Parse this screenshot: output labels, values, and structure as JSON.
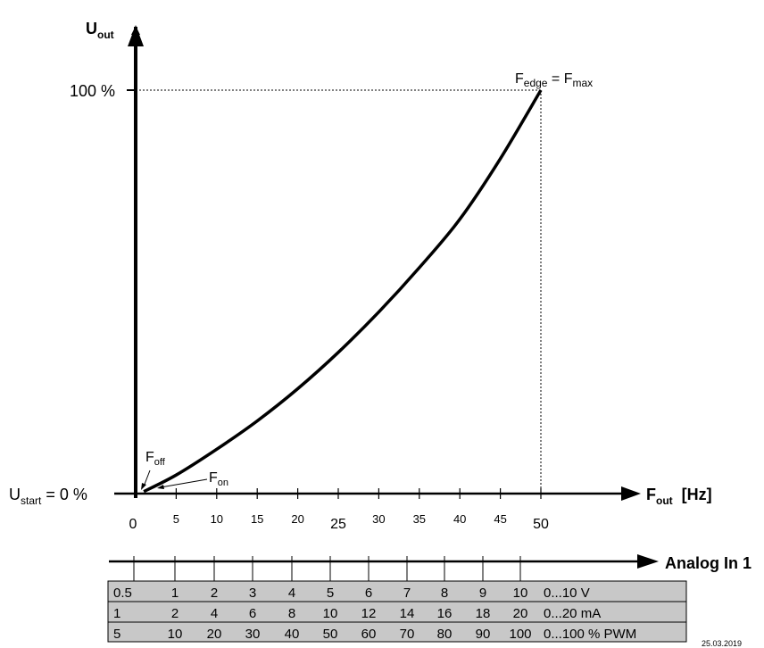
{
  "chart_data": {
    "type": "line",
    "y_axis": {
      "symbol": "U",
      "sub": "out"
    },
    "x_axis": {
      "symbol": "F",
      "sub": "out",
      "unit": "[Hz]"
    },
    "y_max_label": "100 %",
    "y_start_label": {
      "main": "U",
      "sub": "start",
      "rest": " = 0 %"
    },
    "x_ticks": [
      "0",
      "5",
      "10",
      "15",
      "20",
      "25",
      "30",
      "35",
      "40",
      "45",
      "50"
    ],
    "x_values": [
      0,
      5,
      10,
      15,
      20,
      25,
      30,
      35,
      40,
      45,
      50
    ],
    "xlim": [
      0,
      50
    ],
    "ylim": [
      0,
      100
    ],
    "series": [
      {
        "x": [
          1,
          5,
          10,
          15,
          20,
          25,
          30,
          35,
          40,
          45,
          50
        ],
        "y": [
          0.5,
          4.6,
          11,
          18,
          26,
          35,
          45,
          56,
          68,
          83,
          100
        ]
      }
    ],
    "annotations": {
      "edge": {
        "a": "F",
        "a_sub": "edge",
        "mid": " = ",
        "b": "F",
        "b_sub": "max"
      },
      "f_off": {
        "main": "F",
        "sub": "off"
      },
      "f_on": {
        "main": "F",
        "sub": "on"
      }
    }
  },
  "analog": {
    "title": "Analog In 1",
    "rows": [
      {
        "values": [
          "0.5",
          "1",
          "2",
          "3",
          "4",
          "5",
          "6",
          "7",
          "8",
          "9",
          "10"
        ],
        "label": "0...10 V"
      },
      {
        "values": [
          "1",
          "2",
          "4",
          "6",
          "8",
          "10",
          "12",
          "14",
          "16",
          "18",
          "20"
        ],
        "label": "0...20 mA"
      },
      {
        "values": [
          "5",
          "10",
          "20",
          "30",
          "40",
          "50",
          "60",
          "70",
          "80",
          "90",
          "100"
        ],
        "label": "0...100 % PWM"
      }
    ]
  },
  "footer_code": "25.03.2019"
}
